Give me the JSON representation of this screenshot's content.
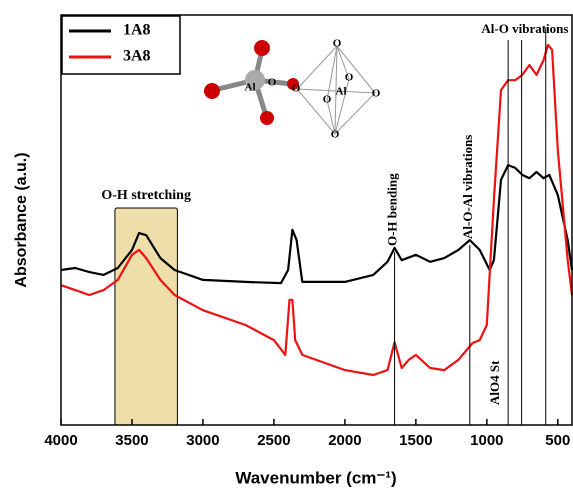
{
  "chart_data": {
    "type": "line",
    "xlabel": "Wavenumber (cm⁻¹)",
    "ylabel": "Absorbance (a.u.)",
    "xlim": [
      4000,
      400
    ],
    "xticks": [
      4000,
      3500,
      3000,
      2500,
      2000,
      1500,
      1000,
      500
    ],
    "ylim": [
      0,
      100
    ],
    "legend": "top-left",
    "series": [
      {
        "name": "1A8",
        "color": "#000000",
        "x": [
          4000,
          3900,
          3800,
          3700,
          3600,
          3500,
          3450,
          3400,
          3300,
          3200,
          3000,
          2700,
          2450,
          2400,
          2370,
          2340,
          2300,
          2000,
          1800,
          1700,
          1650,
          1600,
          1500,
          1400,
          1300,
          1200,
          1120,
          1050,
          980,
          950,
          900,
          850,
          800,
          750,
          700,
          650,
          600,
          560,
          500,
          430,
          400
        ],
        "values": [
          37.8,
          38.3,
          37.3,
          36.6,
          38.3,
          42.7,
          46.8,
          46.3,
          40.7,
          37.8,
          35.4,
          34.9,
          34.6,
          37.8,
          47.6,
          45.1,
          34.9,
          34.9,
          36.6,
          39.8,
          43.2,
          40.2,
          41.5,
          39.8,
          40.7,
          42.7,
          45.1,
          42.7,
          37.8,
          40.2,
          59.8,
          63.4,
          62.7,
          61.0,
          60.2,
          61.7,
          60.2,
          61.0,
          56.1,
          45.1,
          37.8
        ]
      },
      {
        "name": "3A8",
        "color": "#ee1111",
        "x": [
          4000,
          3900,
          3800,
          3700,
          3600,
          3500,
          3450,
          3400,
          3300,
          3200,
          3000,
          2700,
          2500,
          2420,
          2390,
          2370,
          2350,
          2300,
          2000,
          1800,
          1700,
          1650,
          1600,
          1550,
          1500,
          1400,
          1300,
          1200,
          1100,
          1050,
          1000,
          950,
          900,
          850,
          800,
          750,
          700,
          650,
          600,
          570,
          540,
          500,
          430,
          400
        ],
        "values": [
          34.1,
          32.9,
          31.7,
          32.9,
          35.4,
          41.5,
          42.7,
          40.7,
          35.4,
          31.7,
          28.0,
          24.4,
          20.7,
          17.1,
          30.5,
          30.5,
          20.7,
          17.1,
          13.4,
          12.2,
          13.4,
          20.2,
          13.9,
          15.9,
          17.1,
          13.9,
          13.4,
          15.9,
          20.0,
          20.7,
          24.4,
          54.9,
          81.7,
          84.1,
          84.1,
          85.4,
          87.8,
          85.4,
          89.0,
          92.7,
          91.5,
          67.1,
          40.2,
          31.7
        ]
      }
    ],
    "region": {
      "label": "O-H stretching",
      "x": [
        3620,
        3180
      ]
    },
    "markers": [
      {
        "label": "O-H bending",
        "x": [
          1650
        ]
      },
      {
        "label": "Al-O-Al vibrations",
        "x": [
          1120
        ]
      },
      {
        "label": "Al-O vibrations",
        "x": [
          850,
          755,
          585
        ]
      }
    ],
    "note": "AlO4 St",
    "structures": {
      "metal": "Al",
      "oxygen": "O"
    }
  }
}
